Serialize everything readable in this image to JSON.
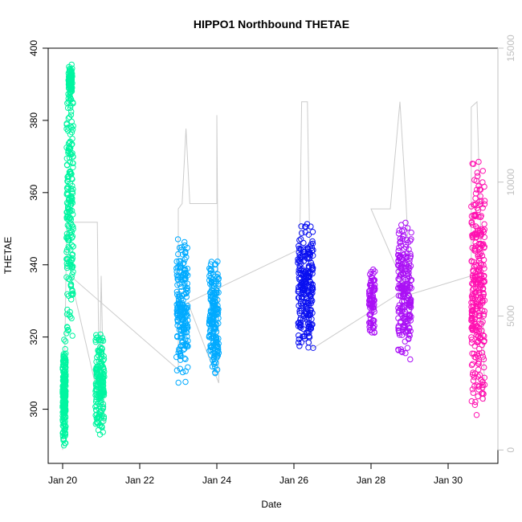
{
  "chart_data": {
    "type": "scatter",
    "title": "HIPPO1 Northbound THETAE",
    "xlabel": "Date",
    "ylabel": "THETAE",
    "x_axis": {
      "range": [
        "2009-01-19T16:00",
        "2009-01-31T12:00"
      ],
      "ticks": [
        "Jan 20",
        "Jan 22",
        "Jan 24",
        "Jan 26",
        "Jan 28",
        "Jan 30"
      ],
      "tick_values_days": [
        20,
        22,
        24,
        26,
        28,
        30
      ]
    },
    "y_axis_left": {
      "label": "THETAE",
      "ylim": [
        285,
        400
      ],
      "ticks": [
        "300",
        "320",
        "340",
        "360",
        "380",
        "400"
      ]
    },
    "y_axis_right": {
      "label": "",
      "ylim": [
        -500,
        15000
      ],
      "ticks": [
        "0",
        "5000",
        "10000",
        "15000"
      ],
      "color": "#c0c0c0"
    },
    "grid": false,
    "legend": "none",
    "series": [
      {
        "color": "#00F5A0",
        "segments": [
          {
            "day_start": 20.0,
            "day_end": 20.08,
            "y_min": 288,
            "y_max": 320,
            "n": 220
          },
          {
            "day_start": 20.1,
            "day_end": 20.28,
            "y_min": 318,
            "y_max": 396,
            "n": 200
          },
          {
            "day_start": 20.15,
            "day_end": 20.25,
            "y_min": 385,
            "y_max": 396,
            "n": 90
          },
          {
            "day_start": 20.85,
            "day_end": 21.08,
            "y_min": 292,
            "y_max": 323,
            "n": 180
          }
        ]
      },
      {
        "color": "#00AAFF",
        "segments": [
          {
            "day_start": 22.95,
            "day_end": 23.25,
            "y_min": 306,
            "y_max": 348,
            "n": 200
          },
          {
            "day_start": 23.8,
            "day_end": 24.05,
            "y_min": 308,
            "y_max": 343,
            "n": 200
          }
        ]
      },
      {
        "color": "#0A10F0",
        "segments": [
          {
            "day_start": 26.1,
            "day_end": 26.5,
            "y_min": 315,
            "y_max": 353,
            "n": 240
          }
        ]
      },
      {
        "color": "#AA10F5",
        "segments": [
          {
            "day_start": 27.95,
            "day_end": 28.1,
            "y_min": 319,
            "y_max": 341,
            "n": 90
          },
          {
            "day_start": 28.7,
            "day_end": 29.05,
            "y_min": 312,
            "y_max": 354,
            "n": 220
          }
        ]
      },
      {
        "color": "#FF10B0",
        "segments": [
          {
            "day_start": 30.6,
            "day_end": 30.95,
            "y_min": 294,
            "y_max": 372,
            "n": 300
          }
        ]
      }
    ],
    "altitude_trace": {
      "color": "#cccccc",
      "axis": "right",
      "points": [
        [
          20.0,
          0
        ],
        [
          20.05,
          3000
        ],
        [
          20.1,
          8000
        ],
        [
          20.12,
          8500
        ],
        [
          20.9,
          8500
        ],
        [
          20.95,
          2000
        ],
        [
          21.0,
          6500
        ],
        [
          21.08,
          1000
        ],
        [
          20.2,
          6500
        ],
        [
          23.0,
          3000
        ],
        [
          23.0,
          9000
        ],
        [
          23.1,
          9200
        ],
        [
          23.2,
          12000
        ],
        [
          23.3,
          9200
        ],
        [
          24.0,
          9200
        ],
        [
          24.0,
          12500
        ],
        [
          24.05,
          2500
        ],
        [
          23.25,
          5500
        ],
        [
          26.15,
          7500
        ],
        [
          26.2,
          13000
        ],
        [
          26.35,
          13000
        ],
        [
          26.45,
          4000
        ],
        [
          26.5,
          3800
        ],
        [
          28.9,
          6000
        ],
        [
          28.0,
          9000
        ],
        [
          28.5,
          9000
        ],
        [
          28.75,
          13000
        ],
        [
          28.9,
          9500
        ],
        [
          29.05,
          5000
        ],
        [
          29.0,
          5800
        ],
        [
          30.6,
          6500
        ],
        [
          30.6,
          12800
        ],
        [
          30.75,
          13000
        ],
        [
          30.85,
          8000
        ],
        [
          30.95,
          1800
        ]
      ]
    }
  }
}
